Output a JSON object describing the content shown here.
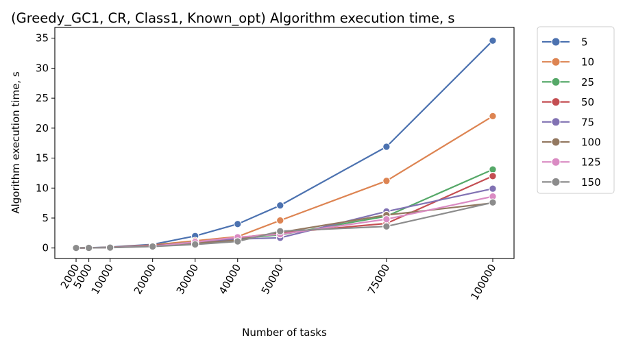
{
  "chart_data": {
    "type": "line",
    "title": "(Greedy_GC1, CR, Class1, Known_opt) Algorithm execution time, s",
    "xlabel": "Number of tasks",
    "ylabel": "Algorithm execution time, s",
    "x": [
      2000,
      5000,
      10000,
      20000,
      30000,
      40000,
      50000,
      75000,
      100000
    ],
    "x_tick_labels": [
      "2000",
      "5000",
      "10000",
      "20000",
      "30000",
      "40000",
      "50000",
      "75000",
      "100000"
    ],
    "y_ticks": [
      0,
      5,
      10,
      15,
      20,
      25,
      30,
      35
    ],
    "xlim": [
      -3000,
      105000
    ],
    "ylim": [
      -1.75,
      36.8
    ],
    "grid": false,
    "legend_position": "outside-right",
    "series": [
      {
        "name": "5",
        "color": "#4c72b0",
        "values": [
          0.02,
          0.05,
          0.15,
          0.6,
          2.0,
          4.0,
          7.1,
          16.9,
          34.6
        ]
      },
      {
        "name": "10",
        "color": "#dd8452",
        "values": [
          0.02,
          0.04,
          0.12,
          0.5,
          1.2,
          1.9,
          4.6,
          11.2,
          22.0
        ]
      },
      {
        "name": "25",
        "color": "#55a868",
        "values": [
          0.01,
          0.03,
          0.1,
          0.4,
          1.0,
          1.6,
          2.2,
          5.3,
          13.1
        ]
      },
      {
        "name": "50",
        "color": "#c44e52",
        "values": [
          0.01,
          0.03,
          0.1,
          0.4,
          0.9,
          1.7,
          2.5,
          4.1,
          12.0
        ]
      },
      {
        "name": "75",
        "color": "#8172b3",
        "values": [
          0.01,
          0.03,
          0.1,
          0.35,
          0.8,
          1.5,
          1.7,
          6.1,
          9.9
        ]
      },
      {
        "name": "100",
        "color": "#937860",
        "values": [
          0.01,
          0.02,
          0.08,
          0.3,
          0.8,
          1.3,
          2.6,
          5.5,
          7.5
        ]
      },
      {
        "name": "125",
        "color": "#da8bc3",
        "values": [
          0.01,
          0.02,
          0.08,
          0.3,
          1.0,
          1.8,
          2.3,
          4.8,
          8.6
        ]
      },
      {
        "name": "150",
        "color": "#8c8c8c",
        "values": [
          0.01,
          0.02,
          0.07,
          0.25,
          0.6,
          1.1,
          2.8,
          3.6,
          7.6
        ]
      }
    ]
  }
}
